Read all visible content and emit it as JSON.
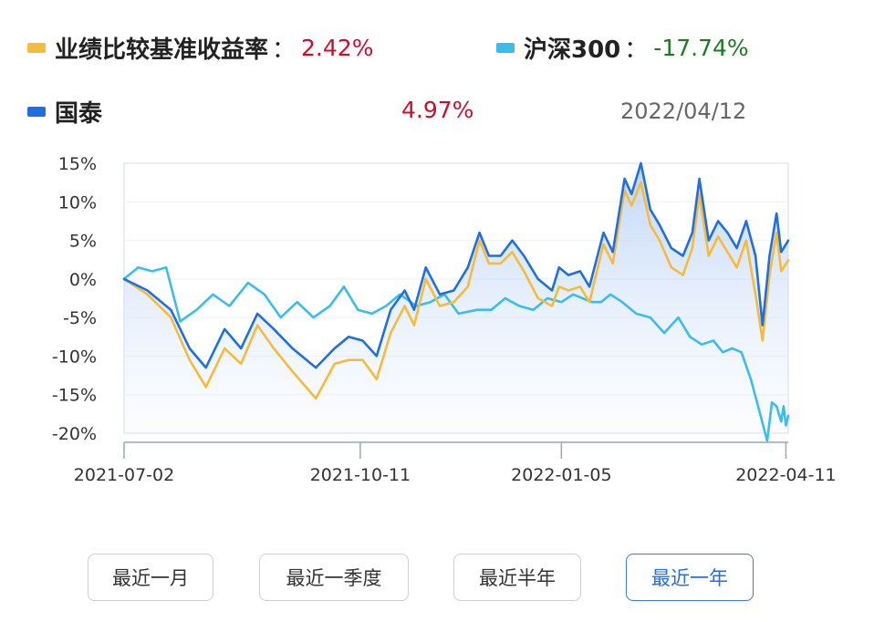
{
  "legend": {
    "benchmark": {
      "label": "业绩比较基准收益率",
      "colon": "：",
      "value": "2.42%",
      "color": "#f5bb3a"
    },
    "index": {
      "label": "沪深300",
      "colon": "：",
      "value": "-17.74%",
      "color": "#3bbcef"
    },
    "fund": {
      "label": "国泰",
      "value": "4.97%",
      "color": "#1f6fe0"
    },
    "date": "2022/04/12"
  },
  "chart_data": {
    "type": "line",
    "ylim": [
      -20,
      15
    ],
    "yticks": [
      "15%",
      "10%",
      "5%",
      "0%",
      "-5%",
      "-10%",
      "-15%",
      "-20%"
    ],
    "xticks": [
      "2021-07-02",
      "2021-10-11",
      "2022-01-05",
      "2022-04-11"
    ],
    "x_range": [
      "2021-07-02",
      "2022-04-12"
    ],
    "fund_area_fill": true,
    "series": [
      {
        "name": "国泰",
        "color": "#1f6fe0",
        "points": [
          [
            "2021-07-02",
            0
          ],
          [
            "2021-07-12",
            -1.5
          ],
          [
            "2021-07-22",
            -4
          ],
          [
            "2021-07-30",
            -9
          ],
          [
            "2021-08-06",
            -11.5
          ],
          [
            "2021-08-14",
            -6.5
          ],
          [
            "2021-08-21",
            -9
          ],
          [
            "2021-08-28",
            -4.5
          ],
          [
            "2021-09-04",
            -6.5
          ],
          [
            "2021-09-12",
            -9
          ],
          [
            "2021-09-22",
            -11.5
          ],
          [
            "2021-09-30",
            -9
          ],
          [
            "2021-10-06",
            -7.5
          ],
          [
            "2021-10-12",
            -8
          ],
          [
            "2021-10-18",
            -10
          ],
          [
            "2021-10-24",
            -4
          ],
          [
            "2021-10-30",
            -1.5
          ],
          [
            "2021-11-03",
            -4
          ],
          [
            "2021-11-08",
            1.5
          ],
          [
            "2021-11-14",
            -2
          ],
          [
            "2021-11-20",
            -1.5
          ],
          [
            "2021-11-26",
            1.5
          ],
          [
            "2021-12-01",
            6
          ],
          [
            "2021-12-05",
            3
          ],
          [
            "2021-12-10",
            3
          ],
          [
            "2021-12-15",
            5
          ],
          [
            "2021-12-20",
            3
          ],
          [
            "2021-12-26",
            0
          ],
          [
            "2022-01-01",
            -1.5
          ],
          [
            "2022-01-04",
            1.5
          ],
          [
            "2022-01-08",
            0.5
          ],
          [
            "2022-01-13",
            1
          ],
          [
            "2022-01-17",
            -1
          ],
          [
            "2022-01-23",
            6
          ],
          [
            "2022-01-27",
            3.5
          ],
          [
            "2022-02-01",
            13
          ],
          [
            "2022-02-04",
            11
          ],
          [
            "2022-02-08",
            15
          ],
          [
            "2022-02-12",
            9
          ],
          [
            "2022-02-16",
            7
          ],
          [
            "2022-02-21",
            4
          ],
          [
            "2022-02-26",
            3
          ],
          [
            "2022-03-02",
            6
          ],
          [
            "2022-03-05",
            13
          ],
          [
            "2022-03-09",
            5
          ],
          [
            "2022-03-13",
            7.5
          ],
          [
            "2022-03-17",
            6
          ],
          [
            "2022-03-21",
            4
          ],
          [
            "2022-03-25",
            7.5
          ],
          [
            "2022-03-29",
            3
          ],
          [
            "2022-04-01",
            -6
          ],
          [
            "2022-04-04",
            3
          ],
          [
            "2022-04-07",
            8.5
          ],
          [
            "2022-04-09",
            3.5
          ],
          [
            "2022-04-12",
            4.97
          ]
        ]
      },
      {
        "name": "业绩比较基准收益率",
        "color": "#f5bb3a",
        "points": [
          [
            "2021-07-02",
            0
          ],
          [
            "2021-07-12",
            -2
          ],
          [
            "2021-07-22",
            -5
          ],
          [
            "2021-07-30",
            -10.5
          ],
          [
            "2021-08-06",
            -14
          ],
          [
            "2021-08-14",
            -9
          ],
          [
            "2021-08-21",
            -11
          ],
          [
            "2021-08-28",
            -6
          ],
          [
            "2021-09-04",
            -9
          ],
          [
            "2021-09-12",
            -12
          ],
          [
            "2021-09-22",
            -15.5
          ],
          [
            "2021-09-30",
            -11
          ],
          [
            "2021-10-06",
            -10.5
          ],
          [
            "2021-10-12",
            -10.5
          ],
          [
            "2021-10-18",
            -13
          ],
          [
            "2021-10-24",
            -7
          ],
          [
            "2021-10-30",
            -3.5
          ],
          [
            "2021-11-03",
            -6
          ],
          [
            "2021-11-08",
            0
          ],
          [
            "2021-11-14",
            -3.5
          ],
          [
            "2021-11-20",
            -3
          ],
          [
            "2021-11-26",
            -1
          ],
          [
            "2021-12-01",
            5
          ],
          [
            "2021-12-05",
            2
          ],
          [
            "2021-12-10",
            2
          ],
          [
            "2021-12-15",
            3.5
          ],
          [
            "2021-12-20",
            1
          ],
          [
            "2021-12-26",
            -2.5
          ],
          [
            "2022-01-01",
            -3.5
          ],
          [
            "2022-01-04",
            -1
          ],
          [
            "2022-01-08",
            -1.5
          ],
          [
            "2022-01-13",
            -1
          ],
          [
            "2022-01-17",
            -3
          ],
          [
            "2022-01-23",
            4.5
          ],
          [
            "2022-01-27",
            2
          ],
          [
            "2022-02-01",
            11.5
          ],
          [
            "2022-02-04",
            9.5
          ],
          [
            "2022-02-08",
            12.5
          ],
          [
            "2022-02-12",
            7
          ],
          [
            "2022-02-16",
            5
          ],
          [
            "2022-02-21",
            1.5
          ],
          [
            "2022-02-26",
            0.5
          ],
          [
            "2022-03-02",
            4
          ],
          [
            "2022-03-05",
            11
          ],
          [
            "2022-03-09",
            3
          ],
          [
            "2022-03-13",
            5.5
          ],
          [
            "2022-03-17",
            3.5
          ],
          [
            "2022-03-21",
            1.5
          ],
          [
            "2022-03-25",
            5
          ],
          [
            "2022-03-29",
            -2
          ],
          [
            "2022-04-01",
            -8
          ],
          [
            "2022-04-04",
            0.5
          ],
          [
            "2022-04-07",
            6
          ],
          [
            "2022-04-09",
            1
          ],
          [
            "2022-04-12",
            2.42
          ]
        ]
      },
      {
        "name": "沪深300",
        "color": "#3bbcef",
        "points": [
          [
            "2021-07-02",
            0
          ],
          [
            "2021-07-08",
            1.5
          ],
          [
            "2021-07-14",
            1
          ],
          [
            "2021-07-20",
            1.5
          ],
          [
            "2021-07-26",
            -5.5
          ],
          [
            "2021-08-02",
            -4
          ],
          [
            "2021-08-09",
            -2
          ],
          [
            "2021-08-16",
            -3.5
          ],
          [
            "2021-08-24",
            -0.5
          ],
          [
            "2021-08-31",
            -2
          ],
          [
            "2021-09-07",
            -5
          ],
          [
            "2021-09-14",
            -3
          ],
          [
            "2021-09-21",
            -5
          ],
          [
            "2021-09-28",
            -3.5
          ],
          [
            "2021-10-04",
            -1
          ],
          [
            "2021-10-10",
            -4
          ],
          [
            "2021-10-16",
            -4.5
          ],
          [
            "2021-10-22",
            -3.5
          ],
          [
            "2021-10-28",
            -2
          ],
          [
            "2021-11-04",
            -3.5
          ],
          [
            "2021-11-10",
            -3
          ],
          [
            "2021-11-16",
            -2
          ],
          [
            "2021-11-22",
            -4.5
          ],
          [
            "2021-11-30",
            -4
          ],
          [
            "2021-12-06",
            -4
          ],
          [
            "2021-12-12",
            -2.5
          ],
          [
            "2021-12-18",
            -3.5
          ],
          [
            "2021-12-24",
            -4
          ],
          [
            "2021-12-30",
            -2.5
          ],
          [
            "2022-01-05",
            -3
          ],
          [
            "2022-01-10",
            -2
          ],
          [
            "2022-01-14",
            -2.5
          ],
          [
            "2022-01-18",
            -3
          ],
          [
            "2022-01-22",
            -3
          ],
          [
            "2022-01-26",
            -2
          ],
          [
            "2022-01-31",
            -3
          ],
          [
            "2022-02-06",
            -4.5
          ],
          [
            "2022-02-12",
            -5
          ],
          [
            "2022-02-18",
            -7
          ],
          [
            "2022-02-24",
            -5
          ],
          [
            "2022-03-01",
            -7.5
          ],
          [
            "2022-03-06",
            -8.5
          ],
          [
            "2022-03-11",
            -8
          ],
          [
            "2022-03-15",
            -9.5
          ],
          [
            "2022-03-19",
            -9
          ],
          [
            "2022-03-23",
            -9.5
          ],
          [
            "2022-03-27",
            -13
          ],
          [
            "2022-03-31",
            -17.5
          ],
          [
            "2022-04-03",
            -21
          ],
          [
            "2022-04-05",
            -16
          ],
          [
            "2022-04-07",
            -16.5
          ],
          [
            "2022-04-09",
            -18.5
          ],
          [
            "2022-04-10",
            -16.5
          ],
          [
            "2022-04-11",
            -19
          ],
          [
            "2022-04-12",
            -17.74
          ]
        ]
      }
    ]
  },
  "range_buttons": [
    "最近一月",
    "最近一季度",
    "最近半年",
    "最近一年"
  ],
  "active_range": "最近一年"
}
